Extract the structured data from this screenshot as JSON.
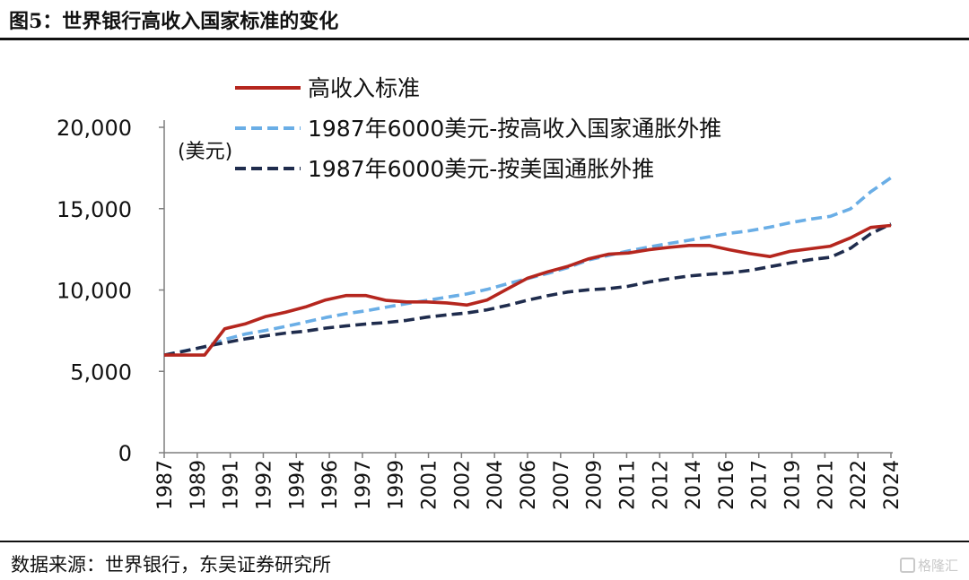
{
  "figure_title": "图5：世界银行高收入国家标准的变化",
  "source_note": "数据来源：世界银行，东吴证券研究所",
  "watermark_text": "格隆汇",
  "chart_data": {
    "type": "line",
    "y_unit": "(美元)",
    "ylim": [
      0,
      20000
    ],
    "y_ticks": [
      0,
      5000,
      10000,
      15000,
      20000
    ],
    "y_tick_labels": [
      "0",
      "5,000",
      "10,000",
      "15,000",
      "20,000"
    ],
    "x_tick_labels": [
      "1987",
      "1989",
      "1991",
      "1992",
      "1994",
      "1996",
      "1997",
      "1999",
      "2001",
      "2002",
      "2004",
      "2006",
      "2007",
      "2009",
      "2011",
      "2012",
      "2014",
      "2016",
      "2017",
      "2019",
      "2021",
      "2022",
      "2024"
    ],
    "grid": false,
    "legend_position": "top",
    "x": [
      1987,
      1988,
      1989,
      1990,
      1991,
      1992,
      1993,
      1994,
      1995,
      1996,
      1997,
      1998,
      1999,
      2000,
      2001,
      2002,
      2003,
      2004,
      2005,
      2006,
      2007,
      2008,
      2009,
      2010,
      2011,
      2012,
      2013,
      2014,
      2015,
      2016,
      2017,
      2018,
      2019,
      2020,
      2021,
      2022,
      2023
    ],
    "series": [
      {
        "name": "高收入标准",
        "color": "#b5261e",
        "dash": "solid",
        "values": [
          6000,
          6000,
          6000,
          7620,
          7910,
          8356,
          8626,
          8956,
          9386,
          9656,
          9656,
          9361,
          9266,
          9266,
          9206,
          9076,
          9386,
          10066,
          10726,
          11116,
          11456,
          11906,
          12196,
          12276,
          12476,
          12616,
          12736,
          12736,
          12476,
          12236,
          12056,
          12376,
          12536,
          12696,
          13206,
          13846,
          13966
        ]
      },
      {
        "name": "1987年6000美元-按高收入国家通胀外推",
        "color": "#6aaee6",
        "dash": "dashed",
        "values": [
          6000,
          6260,
          6500,
          6960,
          7290,
          7510,
          7760,
          8030,
          8310,
          8540,
          8720,
          8950,
          9160,
          9360,
          9560,
          9760,
          10040,
          10380,
          10700,
          11020,
          11380,
          11840,
          12120,
          12400,
          12640,
          12860,
          13060,
          13270,
          13480,
          13640,
          13860,
          14130,
          14350,
          14530,
          14990,
          16040,
          16900
        ]
      },
      {
        "name": "1987年6000美元-按美国通胀外推",
        "color": "#1f2c4d",
        "dash": "dashed",
        "values": [
          6000,
          6240,
          6520,
          6760,
          6990,
          7180,
          7350,
          7470,
          7660,
          7790,
          7910,
          8000,
          8130,
          8330,
          8470,
          8590,
          8780,
          9060,
          9370,
          9650,
          9880,
          10010,
          10080,
          10230,
          10490,
          10690,
          10860,
          10970,
          11050,
          11200,
          11430,
          11660,
          11860,
          12010,
          12570,
          13460,
          14060
        ]
      }
    ]
  }
}
